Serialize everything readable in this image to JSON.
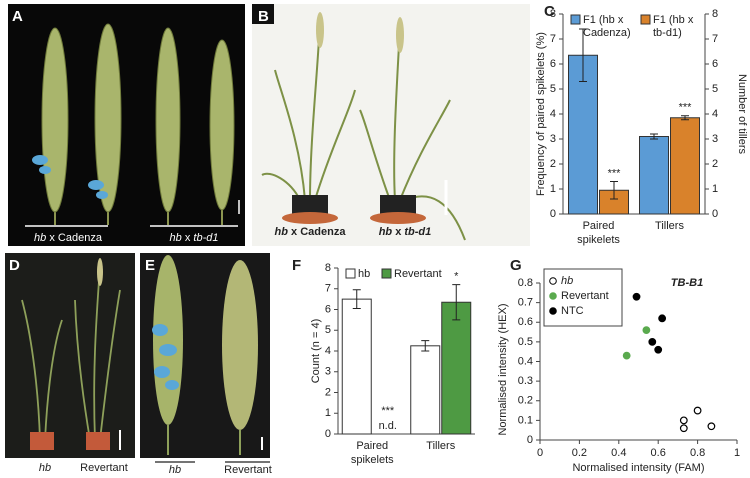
{
  "panel_labels": [
    "A",
    "B",
    "C",
    "D",
    "E",
    "F",
    "G"
  ],
  "photo_captions": [
    [
      {
        "text": "hb",
        "italic": true
      },
      {
        "text": " x Cadenza"
      }
    ],
    [
      {
        "text": "hb",
        "italic": true
      },
      {
        "text": " x "
      },
      {
        "text": "tb-d1",
        "italic": true
      }
    ],
    [
      {
        "text": "hb",
        "italic": true
      },
      {
        "text": " x Cadenza"
      }
    ],
    [
      {
        "text": "hb",
        "italic": true
      },
      {
        "text": " x "
      },
      {
        "text": "tb-d1",
        "italic": true
      }
    ],
    [
      {
        "text": "hb",
        "italic": true
      }
    ],
    [
      {
        "text": "Revertant"
      }
    ],
    [
      {
        "text": "hb",
        "italic": true
      }
    ],
    [
      {
        "text": "Revertant"
      }
    ]
  ],
  "chart_data": [
    {
      "type": "bar",
      "ylabel": "Frequency of paired spikelets (%)",
      "y2label": "Number of tillers",
      "categories": [
        "Paired spikelets",
        "Tillers"
      ],
      "series": [
        {
          "name": "F1 (hb x Cadenza)",
          "color": "#5b9bd5",
          "values": [
            6.35,
            3.1
          ],
          "errors": [
            1.05,
            0.1
          ]
        },
        {
          "name": "F1 (hb x tb-d1)",
          "color": "#d9822b",
          "values": [
            0.95,
            3.85
          ],
          "errors": [
            0.35,
            0.08
          ]
        }
      ],
      "annotations": [
        {
          "text": "***",
          "series": 1,
          "category": 0
        },
        {
          "text": "***",
          "series": 1,
          "category": 1
        }
      ],
      "ylim": [
        0,
        8
      ],
      "yticks": [
        0,
        1,
        2,
        3,
        4,
        5,
        6,
        7,
        8
      ],
      "y2lim": [
        0,
        8
      ],
      "y2ticks": [
        0,
        1,
        2,
        3,
        4,
        5,
        6,
        7,
        8
      ]
    },
    {
      "type": "bar",
      "ylabel": "Count (n = 4)",
      "categories": [
        "Paired spikelets",
        "Tillers"
      ],
      "series": [
        {
          "name": "hb",
          "color": "#ffffff",
          "values": [
            6.5,
            4.25
          ],
          "errors": [
            0.45,
            0.25
          ]
        },
        {
          "name": "Revertant",
          "color": "#4e9a43",
          "values": [
            null,
            6.35
          ],
          "errors": [
            null,
            0.85
          ]
        }
      ],
      "annotations": [
        {
          "text": "n.d.",
          "series": 1,
          "category": 0
        },
        {
          "text": "***",
          "series": 1,
          "category": 0
        },
        {
          "text": "*",
          "series": 1,
          "category": 1
        }
      ],
      "ylim": [
        0,
        8
      ],
      "yticks": [
        0,
        1,
        2,
        3,
        4,
        5,
        6,
        7,
        8
      ]
    },
    {
      "type": "scatter",
      "title": "TB-B1",
      "xlabel": "Normalised intensity (FAM)",
      "ylabel": "Normalised intensity (HEX)",
      "series": [
        {
          "name": "hb",
          "color": "#000000",
          "marker": "hollow",
          "x": [
            0.73,
            0.73,
            0.8,
            0.87
          ],
          "y": [
            0.1,
            0.06,
            0.15,
            0.07
          ]
        },
        {
          "name": "Revertant",
          "color": "#5aaa4e",
          "marker": "filled",
          "x": [
            0.44,
            0.54
          ],
          "y": [
            0.43,
            0.56
          ]
        },
        {
          "name": "NTC",
          "color": "#000000",
          "marker": "filled",
          "x": [
            0.49,
            0.57,
            0.6,
            0.62
          ],
          "y": [
            0.73,
            0.5,
            0.46,
            0.62
          ]
        }
      ],
      "xlim": [
        0,
        1
      ],
      "xticks": [
        0,
        0.2,
        0.4,
        0.6,
        0.8,
        1
      ],
      "ylim": [
        0,
        0.8
      ],
      "yticks": [
        0,
        0.1,
        0.2,
        0.3,
        0.4,
        0.5,
        0.6,
        0.7,
        0.8
      ],
      "legend": "upper left"
    }
  ]
}
